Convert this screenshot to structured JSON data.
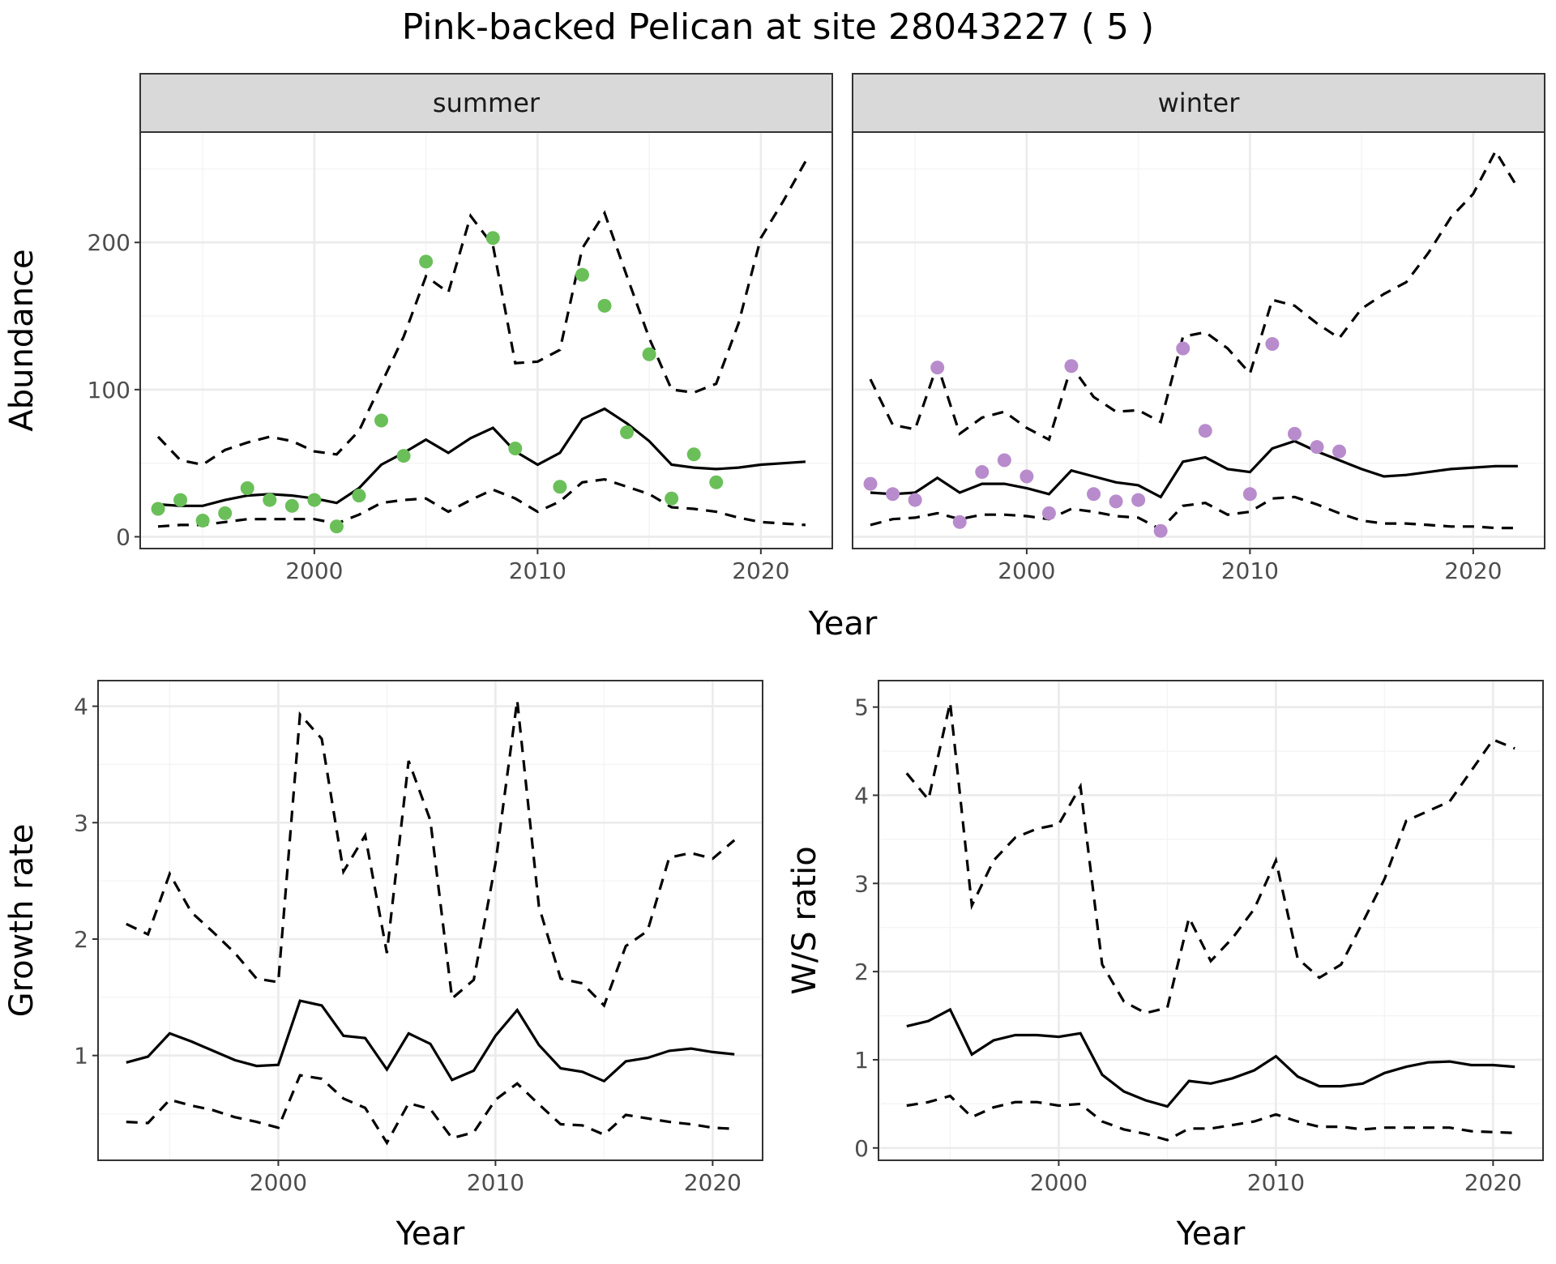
{
  "title": "Pink-backed Pelican at site 28043227 ( 5 )",
  "colors": {
    "summer_points": "#6abf59",
    "winter_points": "#b88ccc",
    "lines": "#000000"
  },
  "chart_data": [
    {
      "type": "line",
      "panel": "summer",
      "strip": "summer",
      "xlabel": "Year",
      "ylabel": "Abundance",
      "xlim": [
        1992.2,
        2023.2
      ],
      "ylim": [
        -8,
        275
      ],
      "xticks": [
        2000,
        2010,
        2020
      ],
      "yticks": [
        0,
        100,
        200
      ],
      "grid": true,
      "series": [
        {
          "style": "solid",
          "x": [
            1993,
            1994,
            1995,
            1996,
            1997,
            1998,
            1999,
            2000,
            2001,
            2002,
            2003,
            2004,
            2005,
            2006,
            2007,
            2008,
            2009,
            2010,
            2011,
            2012,
            2013,
            2014,
            2015,
            2016,
            2017,
            2018,
            2019,
            2020,
            2021,
            2022
          ],
          "values": [
            22,
            21,
            21,
            25,
            28,
            29,
            28,
            26,
            23,
            33,
            49,
            57,
            66,
            57,
            67,
            74,
            58,
            49,
            57,
            80,
            87,
            77,
            65,
            49,
            47,
            46,
            47,
            49,
            50,
            51
          ]
        },
        {
          "style": "dashed",
          "x": [
            1993,
            1994,
            1995,
            1996,
            1997,
            1998,
            1999,
            2000,
            2001,
            2002,
            2003,
            2004,
            2005,
            2006,
            2007,
            2008,
            2009,
            2010,
            2011,
            2012,
            2013,
            2014,
            2015,
            2016,
            2017,
            2018,
            2019,
            2020,
            2021,
            2022
          ],
          "values": [
            68,
            52,
            49,
            59,
            64,
            68,
            65,
            58,
            56,
            72,
            104,
            136,
            177,
            166,
            218,
            198,
            118,
            119,
            127,
            196,
            220,
            177,
            135,
            100,
            98,
            104,
            145,
            203,
            228,
            255
          ]
        },
        {
          "style": "dashed",
          "x": [
            1993,
            1994,
            1995,
            1996,
            1997,
            1998,
            1999,
            2000,
            2001,
            2002,
            2003,
            2004,
            2005,
            2006,
            2007,
            2008,
            2009,
            2010,
            2011,
            2012,
            2013,
            2014,
            2015,
            2016,
            2017,
            2018,
            2019,
            2020,
            2021,
            2022
          ],
          "values": [
            7,
            8,
            8,
            10,
            12,
            12,
            12,
            12,
            9,
            15,
            23,
            25,
            26,
            17,
            25,
            32,
            26,
            17,
            24,
            37,
            39,
            34,
            29,
            20,
            19,
            17,
            13,
            10,
            9,
            8
          ]
        },
        {
          "style": "points",
          "x": [
            1993,
            1994,
            1995,
            1996,
            1997,
            1998,
            1999,
            2000,
            2001,
            2002,
            2003,
            2004,
            2005,
            2008,
            2009,
            2011,
            2012,
            2013,
            2014,
            2015,
            2016,
            2017,
            2018
          ],
          "values": [
            19,
            25,
            11,
            16,
            33,
            25,
            21,
            25,
            7,
            28,
            79,
            55,
            187,
            203,
            60,
            34,
            178,
            157,
            71,
            124,
            26,
            56,
            37
          ]
        }
      ]
    },
    {
      "type": "line",
      "panel": "winter",
      "strip": "winter",
      "xlabel": "Year",
      "ylabel": "",
      "xlim": [
        1992.2,
        2023.2
      ],
      "ylim": [
        -8,
        275
      ],
      "xticks": [
        2000,
        2010,
        2020
      ],
      "yticks": [
        0,
        100,
        200
      ],
      "grid": true,
      "series": [
        {
          "style": "solid",
          "x": [
            1993,
            1994,
            1995,
            1996,
            1997,
            1998,
            1999,
            2000,
            2001,
            2002,
            2003,
            2004,
            2005,
            2006,
            2007,
            2008,
            2009,
            2010,
            2011,
            2012,
            2013,
            2014,
            2015,
            2016,
            2017,
            2018,
            2019,
            2020,
            2021,
            2022
          ],
          "values": [
            30,
            29,
            30,
            40,
            30,
            36,
            36,
            33,
            29,
            45,
            41,
            37,
            35,
            27,
            51,
            54,
            46,
            44,
            60,
            65,
            58,
            52,
            46,
            41,
            42,
            44,
            46,
            47,
            48,
            48
          ]
        },
        {
          "style": "dashed",
          "x": [
            1993,
            1994,
            1995,
            1996,
            1997,
            1998,
            1999,
            2000,
            2001,
            2002,
            2003,
            2004,
            2005,
            2006,
            2007,
            2008,
            2009,
            2010,
            2011,
            2012,
            2013,
            2014,
            2015,
            2016,
            2017,
            2018,
            2019,
            2020,
            2021,
            2022
          ],
          "values": [
            107,
            76,
            73,
            117,
            70,
            81,
            85,
            74,
            66,
            116,
            95,
            85,
            86,
            78,
            136,
            139,
            128,
            111,
            161,
            157,
            145,
            135,
            155,
            165,
            173,
            193,
            217,
            233,
            262,
            237
          ]
        },
        {
          "style": "dashed",
          "x": [
            1993,
            1994,
            1995,
            1996,
            1997,
            1998,
            1999,
            2000,
            2001,
            2002,
            2003,
            2004,
            2005,
            2006,
            2007,
            2008,
            2009,
            2010,
            2011,
            2012,
            2013,
            2014,
            2015,
            2016,
            2017,
            2018,
            2019,
            2020,
            2021,
            2022
          ],
          "values": [
            8,
            12,
            13,
            16,
            12,
            15,
            15,
            14,
            12,
            19,
            17,
            14,
            13,
            5,
            21,
            23,
            15,
            17,
            26,
            27,
            22,
            16,
            11,
            9,
            9,
            8,
            7,
            7,
            6,
            6
          ]
        },
        {
          "style": "points",
          "x": [
            1993,
            1994,
            1995,
            1996,
            1997,
            1998,
            1999,
            2000,
            2001,
            2002,
            2003,
            2004,
            2005,
            2006,
            2007,
            2008,
            2010,
            2011,
            2012,
            2013,
            2014
          ],
          "values": [
            36,
            29,
            25,
            115,
            10,
            44,
            52,
            41,
            16,
            116,
            29,
            24,
            25,
            4,
            128,
            72,
            29,
            131,
            70,
            61,
            58
          ]
        }
      ]
    },
    {
      "type": "line",
      "panel": "growth",
      "xlabel": "Year",
      "ylabel": "Growth rate",
      "xlim": [
        1991.7,
        2022.3
      ],
      "ylim": [
        0.1,
        4.22
      ],
      "xticks": [
        2000,
        2010,
        2020
      ],
      "yticks": [
        1,
        2,
        3,
        4
      ],
      "grid": true,
      "series": [
        {
          "style": "solid",
          "x": [
            1993,
            1994,
            1995,
            1996,
            1997,
            1998,
            1999,
            2000,
            2001,
            2002,
            2003,
            2004,
            2005,
            2006,
            2007,
            2008,
            2009,
            2010,
            2011,
            2012,
            2013,
            2014,
            2015,
            2016,
            2017,
            2018,
            2019,
            2020,
            2021
          ],
          "values": [
            0.94,
            0.99,
            1.19,
            1.12,
            1.04,
            0.96,
            0.91,
            0.92,
            1.47,
            1.43,
            1.17,
            1.15,
            0.88,
            1.19,
            1.1,
            0.79,
            0.87,
            1.17,
            1.39,
            1.09,
            0.89,
            0.86,
            0.78,
            0.95,
            0.98,
            1.04,
            1.06,
            1.03,
            1.01
          ]
        },
        {
          "style": "dashed",
          "x": [
            1993,
            1994,
            1995,
            1996,
            1997,
            1998,
            1999,
            2000,
            2001,
            2002,
            2003,
            2004,
            2005,
            2006,
            2007,
            2008,
            2009,
            2010,
            2011,
            2012,
            2013,
            2014,
            2015,
            2016,
            2017,
            2018,
            2019,
            2020,
            2021
          ],
          "values": [
            2.13,
            2.04,
            2.56,
            2.23,
            2.06,
            1.88,
            1.66,
            1.63,
            3.93,
            3.72,
            2.58,
            2.89,
            1.88,
            3.53,
            3.02,
            1.49,
            1.65,
            2.65,
            4.05,
            2.28,
            1.66,
            1.62,
            1.43,
            1.94,
            2.07,
            2.7,
            2.74,
            2.69,
            2.85
          ]
        },
        {
          "style": "dashed",
          "x": [
            1993,
            1994,
            1995,
            1996,
            1997,
            1998,
            1999,
            2000,
            2001,
            2002,
            2003,
            2004,
            2005,
            2006,
            2007,
            2008,
            2009,
            2010,
            2011,
            2012,
            2013,
            2014,
            2015,
            2016,
            2017,
            2018,
            2019,
            2020,
            2021
          ],
          "values": [
            0.43,
            0.42,
            0.62,
            0.57,
            0.53,
            0.47,
            0.43,
            0.38,
            0.83,
            0.8,
            0.63,
            0.55,
            0.25,
            0.59,
            0.54,
            0.29,
            0.34,
            0.62,
            0.76,
            0.58,
            0.41,
            0.4,
            0.32,
            0.49,
            0.46,
            0.43,
            0.41,
            0.38,
            0.37
          ]
        }
      ]
    },
    {
      "type": "line",
      "panel": "ws_ratio",
      "xlabel": "Year",
      "ylabel": "W/S ratio",
      "xlim": [
        1991.7,
        2022.3
      ],
      "ylim": [
        -0.14,
        5.3
      ],
      "xticks": [
        2000,
        2010,
        2020
      ],
      "yticks": [
        0,
        1,
        2,
        3,
        4,
        5
      ],
      "grid": true,
      "series": [
        {
          "style": "solid",
          "x": [
            1993,
            1994,
            1995,
            1996,
            1997,
            1998,
            1999,
            2000,
            2001,
            2002,
            2003,
            2004,
            2005,
            2006,
            2007,
            2008,
            2009,
            2010,
            2011,
            2012,
            2013,
            2014,
            2015,
            2016,
            2017,
            2018,
            2019,
            2020,
            2021
          ],
          "values": [
            1.38,
            1.44,
            1.57,
            1.06,
            1.22,
            1.28,
            1.28,
            1.26,
            1.3,
            0.83,
            0.64,
            0.54,
            0.47,
            0.76,
            0.73,
            0.79,
            0.88,
            1.04,
            0.81,
            0.7,
            0.7,
            0.73,
            0.85,
            0.92,
            0.97,
            0.98,
            0.94,
            0.94,
            0.92
          ]
        },
        {
          "style": "dashed",
          "x": [
            1993,
            1994,
            1995,
            1996,
            1997,
            1998,
            1999,
            2000,
            2001,
            2002,
            2003,
            2004,
            2005,
            2006,
            2007,
            2008,
            2009,
            2010,
            2011,
            2012,
            2013,
            2014,
            2015,
            2016,
            2017,
            2018,
            2019,
            2020,
            2021
          ],
          "values": [
            4.25,
            3.95,
            5.05,
            2.75,
            3.26,
            3.52,
            3.62,
            3.67,
            4.1,
            2.08,
            1.66,
            1.53,
            1.59,
            2.61,
            2.12,
            2.38,
            2.71,
            3.26,
            2.15,
            1.93,
            2.08,
            2.56,
            3.05,
            3.71,
            3.82,
            3.93,
            4.28,
            4.63,
            4.53
          ]
        },
        {
          "style": "dashed",
          "x": [
            1993,
            1994,
            1995,
            1996,
            1997,
            1998,
            1999,
            2000,
            2001,
            2002,
            2003,
            2004,
            2005,
            2006,
            2007,
            2008,
            2009,
            2010,
            2011,
            2012,
            2013,
            2014,
            2015,
            2016,
            2017,
            2018,
            2019,
            2020,
            2021
          ],
          "values": [
            0.48,
            0.52,
            0.59,
            0.35,
            0.46,
            0.52,
            0.52,
            0.48,
            0.5,
            0.3,
            0.21,
            0.16,
            0.09,
            0.22,
            0.22,
            0.26,
            0.3,
            0.38,
            0.3,
            0.24,
            0.24,
            0.21,
            0.23,
            0.23,
            0.23,
            0.23,
            0.19,
            0.18,
            0.17
          ]
        }
      ]
    }
  ]
}
